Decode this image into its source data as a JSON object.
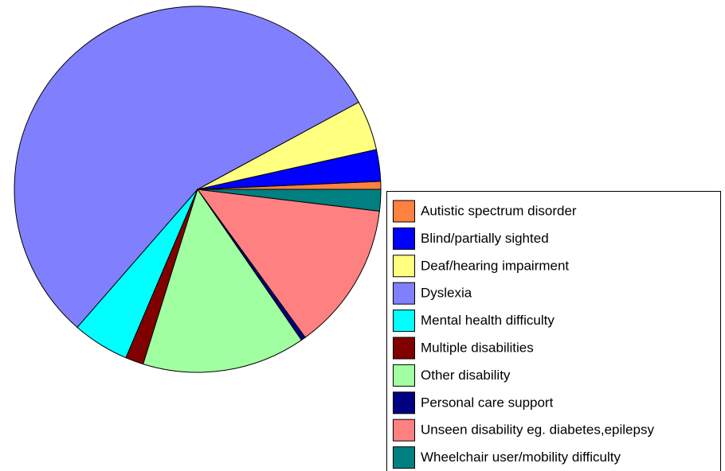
{
  "chart_data": {
    "type": "pie",
    "categories": [
      "Autistic spectrum disorder",
      "Blind/partially sighted",
      "Deaf/hearing impairment",
      "Dyslexia",
      "Mental health difficulty",
      "Multiple disabilities",
      "Other disability",
      "Personal care support",
      "Unseen disability eg. diabetes,epilepsy",
      "Wheelchair user/mobility difficulty"
    ],
    "values": [
      0.7,
      2.8,
      4.4,
      55.7,
      5.0,
      1.6,
      14.4,
      0.4,
      13.1,
      1.9
    ],
    "colors": [
      "#ff8040",
      "#0000ff",
      "#ffff80",
      "#8080ff",
      "#00ffff",
      "#800000",
      "#a0ffa0",
      "#000080",
      "#ff8080",
      "#008080"
    ],
    "legend": "right"
  }
}
